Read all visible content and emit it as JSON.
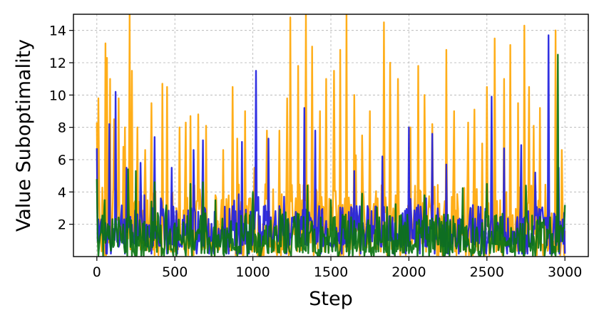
{
  "chart_data": {
    "type": "line",
    "title": "",
    "xlabel": "Step",
    "ylabel": "Value Suboptimality",
    "xlim": [
      -150,
      3150
    ],
    "ylim": [
      0,
      15
    ],
    "xticks": [
      0,
      500,
      1000,
      1500,
      2000,
      2500,
      3000
    ],
    "yticks": [
      2,
      4,
      6,
      8,
      10,
      12,
      14
    ],
    "grid": true,
    "grid_style": "dashed",
    "legend": "none",
    "series": [
      {
        "color": "#FFA500",
        "baseline_range": [
          0.3,
          4.5
        ],
        "peaks": [
          [
            0,
            8.3
          ],
          [
            10,
            9.8
          ],
          [
            55,
            13.2
          ],
          [
            65,
            12.3
          ],
          [
            85,
            11.0
          ],
          [
            110,
            8.5
          ],
          [
            140,
            9.8
          ],
          [
            170,
            6.8
          ],
          [
            180,
            8.0
          ],
          [
            210,
            15.0
          ],
          [
            225,
            11.5
          ],
          [
            260,
            8.0
          ],
          [
            310,
            6.6
          ],
          [
            350,
            9.5
          ],
          [
            420,
            10.7
          ],
          [
            450,
            10.5
          ],
          [
            530,
            8.0
          ],
          [
            570,
            8.3
          ],
          [
            600,
            8.7
          ],
          [
            650,
            8.8
          ],
          [
            700,
            8.1
          ],
          [
            810,
            6.6
          ],
          [
            870,
            10.5
          ],
          [
            900,
            7.3
          ],
          [
            950,
            9.0
          ],
          [
            1010,
            5.5
          ],
          [
            1090,
            7.8
          ],
          [
            1170,
            7.8
          ],
          [
            1220,
            9.8
          ],
          [
            1240,
            14.8
          ],
          [
            1290,
            11.8
          ],
          [
            1340,
            15.0
          ],
          [
            1380,
            13.0
          ],
          [
            1430,
            9.0
          ],
          [
            1470,
            11.0
          ],
          [
            1520,
            11.5
          ],
          [
            1560,
            12.8
          ],
          [
            1600,
            15.0
          ],
          [
            1650,
            10.0
          ],
          [
            1700,
            7.5
          ],
          [
            1750,
            9.0
          ],
          [
            1840,
            14.5
          ],
          [
            1880,
            12.0
          ],
          [
            1930,
            11.0
          ],
          [
            2010,
            8.0
          ],
          [
            2060,
            11.8
          ],
          [
            2100,
            10.0
          ],
          [
            2150,
            8.2
          ],
          [
            2240,
            12.8
          ],
          [
            2290,
            9.0
          ],
          [
            2380,
            8.3
          ],
          [
            2420,
            9.1
          ],
          [
            2470,
            7.0
          ],
          [
            2500,
            10.5
          ],
          [
            2550,
            13.5
          ],
          [
            2610,
            11.0
          ],
          [
            2650,
            13.1
          ],
          [
            2700,
            9.5
          ],
          [
            2740,
            14.3
          ],
          [
            2770,
            10.5
          ],
          [
            2800,
            8.1
          ],
          [
            2840,
            9.2
          ],
          [
            2940,
            14.0
          ],
          [
            2980,
            6.6
          ]
        ]
      },
      {
        "color": "#1F1FE0",
        "baseline_range": [
          0.6,
          3.2
        ],
        "peaks": [
          [
            0,
            6.7
          ],
          [
            80,
            8.2
          ],
          [
            120,
            10.2
          ],
          [
            190,
            5.5
          ],
          [
            280,
            5.8
          ],
          [
            370,
            7.4
          ],
          [
            480,
            5.5
          ],
          [
            620,
            6.6
          ],
          [
            680,
            7.2
          ],
          [
            930,
            7.1
          ],
          [
            1020,
            11.5
          ],
          [
            1100,
            7.3
          ],
          [
            1330,
            9.2
          ],
          [
            1400,
            7.8
          ],
          [
            1650,
            5.3
          ],
          [
            1830,
            6.2
          ],
          [
            2000,
            8.0
          ],
          [
            2150,
            7.6
          ],
          [
            2240,
            5.7
          ],
          [
            2530,
            9.9
          ],
          [
            2610,
            6.7
          ],
          [
            2720,
            6.9
          ],
          [
            2810,
            5.2
          ],
          [
            2895,
            13.7
          ],
          [
            2960,
            5.5
          ]
        ]
      },
      {
        "color": "#0B7412",
        "baseline_range": [
          0.2,
          2.7
        ],
        "peaks": [
          [
            0,
            4.8
          ],
          [
            50,
            3.5
          ],
          [
            200,
            5.4
          ],
          [
            250,
            5.3
          ],
          [
            370,
            4.6
          ],
          [
            600,
            4.5
          ],
          [
            680,
            4.6
          ],
          [
            1000,
            4.0
          ],
          [
            1350,
            4.4
          ],
          [
            1500,
            3.5
          ],
          [
            1700,
            3.9
          ],
          [
            2100,
            3.8
          ],
          [
            2500,
            4.5
          ],
          [
            2750,
            4.4
          ],
          [
            2955,
            12.5
          ],
          [
            3000,
            3.2
          ]
        ]
      }
    ]
  }
}
